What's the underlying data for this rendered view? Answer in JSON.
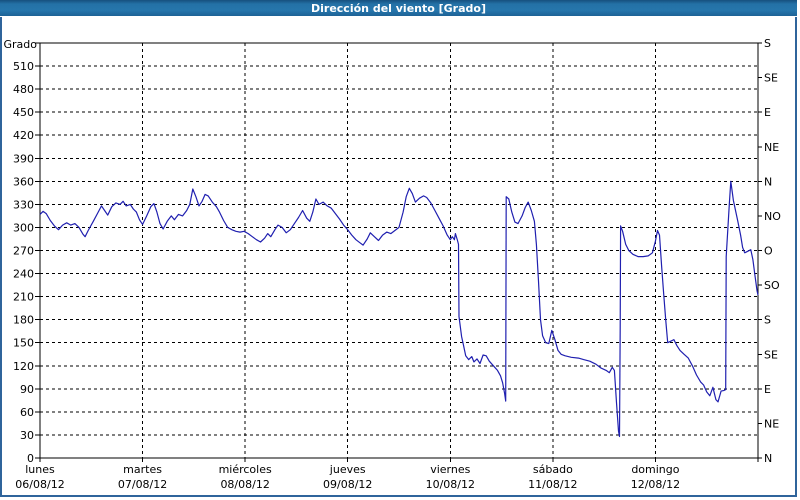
{
  "window": {
    "title": "Dirección del viento [Grado]"
  },
  "colors": {
    "line": "#2020b0",
    "titlebar": "#2471a6",
    "window_border": "#2f649b",
    "grid": "#000000",
    "background": "#ffffff",
    "title_text": "#ffffff"
  },
  "chart_data": {
    "type": "line",
    "title": "Dirección del viento [Grado]",
    "grid": "dashed",
    "legend_position": "none",
    "y_axis": {
      "label": "Grado",
      "min": 0,
      "max": 540,
      "tick_step": 30,
      "tick_labels": [
        "0",
        "30",
        "60",
        "90",
        "120",
        "150",
        "180",
        "210",
        "240",
        "270",
        "300",
        "330",
        "360",
        "390",
        "420",
        "450",
        "480",
        "510"
      ]
    },
    "right_axis_ticks": [
      {
        "value": 540,
        "label": "S"
      },
      {
        "value": 495,
        "label": "SE"
      },
      {
        "value": 450,
        "label": "E"
      },
      {
        "value": 405,
        "label": "NE"
      },
      {
        "value": 360,
        "label": "N"
      },
      {
        "value": 315,
        "label": "NO"
      },
      {
        "value": 270,
        "label": "O"
      },
      {
        "value": 225,
        "label": "SO"
      },
      {
        "value": 180,
        "label": "S"
      },
      {
        "value": 135,
        "label": "SE"
      },
      {
        "value": 90,
        "label": "E"
      },
      {
        "value": 45,
        "label": "NE"
      },
      {
        "value": 0,
        "label": "N"
      }
    ],
    "x_axis": {
      "range_days": [
        0,
        7
      ],
      "days": [
        {
          "name": "lunes",
          "date": "06/08/12"
        },
        {
          "name": "martes",
          "date": "07/08/12"
        },
        {
          "name": "miércoles",
          "date": "08/08/12"
        },
        {
          "name": "jueves",
          "date": "09/08/12"
        },
        {
          "name": "viernes",
          "date": "10/08/12"
        },
        {
          "name": "sábado",
          "date": "11/08/12"
        },
        {
          "name": "domingo",
          "date": "12/08/12"
        }
      ]
    },
    "series": [
      {
        "name": "Dirección del viento",
        "color": "#2020b0",
        "points": [
          [
            0.0,
            317
          ],
          [
            0.03,
            321
          ],
          [
            0.06,
            318
          ],
          [
            0.1,
            309
          ],
          [
            0.14,
            302
          ],
          [
            0.18,
            297
          ],
          [
            0.22,
            303
          ],
          [
            0.26,
            306
          ],
          [
            0.3,
            303
          ],
          [
            0.34,
            305
          ],
          [
            0.38,
            300
          ],
          [
            0.42,
            291
          ],
          [
            0.44,
            288
          ],
          [
            0.47,
            296
          ],
          [
            0.52,
            308
          ],
          [
            0.56,
            318
          ],
          [
            0.6,
            328
          ],
          [
            0.63,
            322
          ],
          [
            0.66,
            316
          ],
          [
            0.7,
            327
          ],
          [
            0.74,
            332
          ],
          [
            0.78,
            330
          ],
          [
            0.81,
            334
          ],
          [
            0.84,
            328
          ],
          [
            0.88,
            330
          ],
          [
            0.91,
            324
          ],
          [
            0.94,
            320
          ],
          [
            0.97,
            310
          ],
          [
            1.0,
            304
          ],
          [
            1.04,
            315
          ],
          [
            1.08,
            327
          ],
          [
            1.11,
            331
          ],
          [
            1.14,
            320
          ],
          [
            1.17,
            305
          ],
          [
            1.2,
            298
          ],
          [
            1.24,
            308
          ],
          [
            1.28,
            315
          ],
          [
            1.31,
            310
          ],
          [
            1.35,
            317
          ],
          [
            1.39,
            315
          ],
          [
            1.43,
            322
          ],
          [
            1.46,
            330
          ],
          [
            1.49,
            350
          ],
          [
            1.52,
            340
          ],
          [
            1.55,
            328
          ],
          [
            1.58,
            334
          ],
          [
            1.61,
            343
          ],
          [
            1.64,
            341
          ],
          [
            1.68,
            333
          ],
          [
            1.72,
            327
          ],
          [
            1.75,
            320
          ],
          [
            1.79,
            309
          ],
          [
            1.83,
            300
          ],
          [
            1.87,
            297
          ],
          [
            1.91,
            295
          ],
          [
            1.95,
            294
          ],
          [
            1.99,
            295
          ],
          [
            2.03,
            292
          ],
          [
            2.07,
            288
          ],
          [
            2.11,
            284
          ],
          [
            2.15,
            281
          ],
          [
            2.19,
            286
          ],
          [
            2.22,
            292
          ],
          [
            2.25,
            288
          ],
          [
            2.29,
            297
          ],
          [
            2.32,
            303
          ],
          [
            2.36,
            300
          ],
          [
            2.4,
            293
          ],
          [
            2.44,
            297
          ],
          [
            2.48,
            305
          ],
          [
            2.52,
            313
          ],
          [
            2.56,
            322
          ],
          [
            2.6,
            312
          ],
          [
            2.63,
            308
          ],
          [
            2.66,
            320
          ],
          [
            2.69,
            337
          ],
          [
            2.72,
            330
          ],
          [
            2.76,
            333
          ],
          [
            2.8,
            328
          ],
          [
            2.84,
            325
          ],
          [
            2.88,
            318
          ],
          [
            2.92,
            311
          ],
          [
            2.96,
            303
          ],
          [
            3.0,
            297
          ],
          [
            3.04,
            290
          ],
          [
            3.08,
            284
          ],
          [
            3.12,
            280
          ],
          [
            3.15,
            277
          ],
          [
            3.19,
            285
          ],
          [
            3.22,
            293
          ],
          [
            3.26,
            288
          ],
          [
            3.3,
            283
          ],
          [
            3.34,
            290
          ],
          [
            3.38,
            294
          ],
          [
            3.42,
            292
          ],
          [
            3.46,
            296
          ],
          [
            3.5,
            300
          ],
          [
            3.54,
            320
          ],
          [
            3.57,
            340
          ],
          [
            3.6,
            351
          ],
          [
            3.63,
            344
          ],
          [
            3.66,
            333
          ],
          [
            3.7,
            338
          ],
          [
            3.74,
            341
          ],
          [
            3.77,
            339
          ],
          [
            3.81,
            332
          ],
          [
            3.85,
            322
          ],
          [
            3.89,
            312
          ],
          [
            3.93,
            302
          ],
          [
            3.97,
            290
          ],
          [
            4.0,
            284
          ],
          [
            4.02,
            288
          ],
          [
            4.04,
            284
          ],
          [
            4.05,
            292
          ],
          [
            4.07,
            283
          ],
          [
            4.08,
            278
          ],
          [
            4.085,
            184
          ],
          [
            4.11,
            158
          ],
          [
            4.13,
            146
          ],
          [
            4.15,
            133
          ],
          [
            4.18,
            128
          ],
          [
            4.21,
            132
          ],
          [
            4.23,
            125
          ],
          [
            4.26,
            129
          ],
          [
            4.29,
            123
          ],
          [
            4.32,
            134
          ],
          [
            4.35,
            133
          ],
          [
            4.38,
            126
          ],
          [
            4.42,
            120
          ],
          [
            4.46,
            114
          ],
          [
            4.49,
            107
          ],
          [
            4.51,
            98
          ],
          [
            4.53,
            84
          ],
          [
            4.54,
            74
          ],
          [
            4.545,
            340
          ],
          [
            4.57,
            337
          ],
          [
            4.6,
            320
          ],
          [
            4.63,
            307
          ],
          [
            4.66,
            305
          ],
          [
            4.7,
            315
          ],
          [
            4.73,
            326
          ],
          [
            4.76,
            333
          ],
          [
            4.79,
            322
          ],
          [
            4.82,
            308
          ],
          [
            4.84,
            278
          ],
          [
            4.86,
            230
          ],
          [
            4.88,
            180
          ],
          [
            4.9,
            159
          ],
          [
            4.93,
            150
          ],
          [
            4.96,
            149
          ],
          [
            4.99,
            166
          ],
          [
            5.02,
            154
          ],
          [
            5.05,
            140
          ],
          [
            5.08,
            135
          ],
          [
            5.12,
            133
          ],
          [
            5.18,
            131
          ],
          [
            5.25,
            130
          ],
          [
            5.3,
            128
          ],
          [
            5.36,
            126
          ],
          [
            5.42,
            122
          ],
          [
            5.47,
            117
          ],
          [
            5.52,
            114
          ],
          [
            5.55,
            111
          ],
          [
            5.58,
            118
          ],
          [
            5.6,
            114
          ],
          [
            5.62,
            72
          ],
          [
            5.64,
            35
          ],
          [
            5.65,
            28
          ],
          [
            5.657,
            170
          ],
          [
            5.66,
            302
          ],
          [
            5.68,
            295
          ],
          [
            5.71,
            278
          ],
          [
            5.74,
            270
          ],
          [
            5.78,
            265
          ],
          [
            5.83,
            262
          ],
          [
            5.88,
            262
          ],
          [
            5.93,
            263
          ],
          [
            5.97,
            267
          ],
          [
            6.0,
            282
          ],
          [
            6.02,
            296
          ],
          [
            6.04,
            290
          ],
          [
            6.06,
            250
          ],
          [
            6.08,
            215
          ],
          [
            6.1,
            180
          ],
          [
            6.12,
            150
          ],
          [
            6.15,
            152
          ],
          [
            6.18,
            154
          ],
          [
            6.21,
            146
          ],
          [
            6.24,
            140
          ],
          [
            6.28,
            135
          ],
          [
            6.32,
            130
          ],
          [
            6.36,
            120
          ],
          [
            6.4,
            108
          ],
          [
            6.44,
            99
          ],
          [
            6.47,
            95
          ],
          [
            6.5,
            86
          ],
          [
            6.53,
            81
          ],
          [
            6.56,
            92
          ],
          [
            6.59,
            76
          ],
          [
            6.61,
            73
          ],
          [
            6.64,
            87
          ],
          [
            6.67,
            88
          ],
          [
            6.685,
            89
          ],
          [
            6.69,
            262
          ],
          [
            6.72,
            330
          ],
          [
            6.735,
            360
          ],
          [
            6.76,
            335
          ],
          [
            6.8,
            310
          ],
          [
            6.83,
            290
          ],
          [
            6.85,
            274
          ],
          [
            6.87,
            267
          ],
          [
            6.9,
            269
          ],
          [
            6.93,
            271
          ],
          [
            6.95,
            258
          ],
          [
            6.97,
            238
          ],
          [
            6.99,
            218
          ],
          [
            7.0,
            212
          ]
        ]
      }
    ]
  }
}
